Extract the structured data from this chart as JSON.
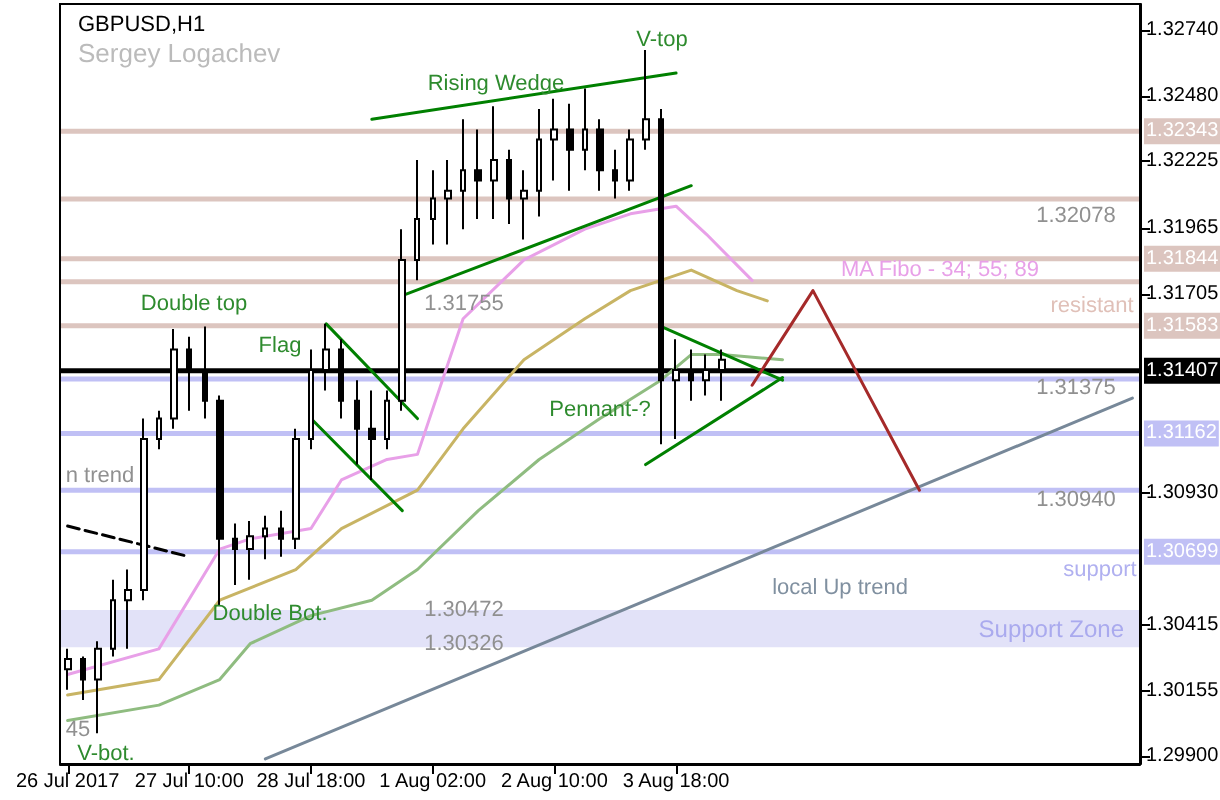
{
  "chart_data": {
    "type": "candlestick",
    "title": "GBPUSD,H1",
    "subtitle": "Sergey Logachev",
    "color": "#000000",
    "categories": [
      "26 Jul 2017",
      null,
      null,
      null,
      null,
      null,
      null,
      null,
      "27 Jul 10:00",
      null,
      null,
      null,
      null,
      null,
      null,
      null,
      "28 Jul 18:00",
      null,
      null,
      null,
      null,
      null,
      null,
      null,
      "1 Aug 02:00",
      null,
      null,
      null,
      null,
      null,
      null,
      null,
      "2 Aug 10:00",
      null,
      null,
      null,
      null,
      null,
      null,
      null,
      "3 Aug 18:00",
      null,
      null,
      null,
      null,
      null,
      null,
      null,
      null,
      null,
      null,
      null,
      null,
      null,
      null,
      null,
      null,
      null,
      null,
      null,
      null,
      null,
      null,
      null,
      null,
      null,
      null,
      null,
      null,
      null,
      null
    ],
    "ohlc": [
      [
        1.3024,
        1.3032,
        1.3016,
        1.3028
      ],
      [
        1.3028,
        1.3029,
        1.3012,
        1.302
      ],
      [
        1.302,
        1.3035,
        1.2999,
        1.3032
      ],
      [
        1.3032,
        1.3059,
        1.3029,
        1.3051
      ],
      [
        1.3051,
        1.3063,
        1.3032,
        1.3055
      ],
      [
        1.3055,
        1.3122,
        1.3051,
        1.3114
      ],
      [
        1.3114,
        1.3125,
        1.311,
        1.3122
      ],
      [
        1.3122,
        1.3157,
        1.3118,
        1.3149
      ],
      [
        1.3149,
        1.3154,
        1.3125,
        1.3141
      ],
      [
        1.3141,
        1.3158,
        1.3122,
        1.3129
      ],
      [
        1.3129,
        1.3131,
        1.3049,
        1.3075
      ],
      [
        1.3075,
        1.3081,
        1.3057,
        1.3071
      ],
      [
        1.3071,
        1.3082,
        1.3059,
        1.3076
      ],
      [
        1.3076,
        1.3084,
        1.3067,
        1.3079
      ],
      [
        1.3079,
        1.3086,
        1.3068,
        1.3075
      ],
      [
        1.3075,
        1.3118,
        1.3071,
        1.3114
      ],
      [
        1.3114,
        1.3149,
        1.311,
        1.3141
      ],
      [
        1.3141,
        1.3159,
        1.3133,
        1.3149
      ],
      [
        1.3149,
        1.3153,
        1.3122,
        1.3129
      ],
      [
        1.3129,
        1.3137,
        1.3104,
        1.3118
      ],
      [
        1.3118,
        1.3133,
        1.3098,
        1.3114
      ],
      [
        1.3114,
        1.3133,
        1.311,
        1.3129
      ],
      [
        1.3129,
        1.3196,
        1.3125,
        1.3184
      ],
      [
        1.3184,
        1.3223,
        1.3176,
        1.32
      ],
      [
        1.32,
        1.3219,
        1.319,
        1.3208
      ],
      [
        1.3208,
        1.3223,
        1.319,
        1.3211
      ],
      [
        1.3211,
        1.3239,
        1.3196,
        1.3219
      ],
      [
        1.3219,
        1.3235,
        1.32,
        1.3215
      ],
      [
        1.3215,
        1.3244,
        1.32,
        1.3223
      ],
      [
        1.3223,
        1.3227,
        1.3198,
        1.3208
      ],
      [
        1.3208,
        1.3219,
        1.3192,
        1.3211
      ],
      [
        1.3211,
        1.3243,
        1.3201,
        1.3231
      ],
      [
        1.3231,
        1.3247,
        1.3215,
        1.3235
      ],
      [
        1.3235,
        1.3245,
        1.3211,
        1.3227
      ],
      [
        1.3227,
        1.3251,
        1.3219,
        1.3235
      ],
      [
        1.3235,
        1.3239,
        1.3211,
        1.3219
      ],
      [
        1.3219,
        1.3227,
        1.3208,
        1.3215
      ],
      [
        1.3215,
        1.3235,
        1.3211,
        1.3231
      ],
      [
        1.3231,
        1.3266,
        1.3227,
        1.3239
      ],
      [
        1.3239,
        1.3243,
        1.3112,
        1.3137
      ],
      [
        1.3137,
        1.3153,
        1.3114,
        1.3141
      ],
      [
        1.3141,
        1.3149,
        1.3129,
        1.3137
      ],
      [
        1.3137,
        1.3147,
        1.3131,
        1.3141
      ],
      [
        1.3141,
        1.3149,
        1.3129,
        1.3145
      ],
      null,
      null,
      null,
      null,
      null,
      null,
      null,
      null,
      null,
      null,
      null,
      null,
      null,
      null,
      null,
      null,
      null,
      null,
      null,
      null,
      null,
      null,
      null,
      null,
      null,
      null,
      null
    ],
    "series": [
      {
        "type": "line",
        "color": "#e8a0e8",
        "values": [
          1.3022,
          null,
          null,
          null,
          null,
          null,
          1.3032,
          null,
          null,
          null,
          1.3071,
          null,
          1.3075,
          null,
          null,
          null,
          1.3079,
          null,
          1.3098,
          null,
          null,
          1.3106,
          null,
          1.3108,
          null,
          null,
          1.3161,
          null,
          null,
          null,
          1.3184,
          null,
          null,
          null,
          1.3196,
          null,
          null,
          1.3202,
          null,
          null,
          1.3205,
          null,
          1.3194,
          null,
          null,
          1.3176,
          null,
          null,
          null,
          null,
          null,
          null,
          null,
          null,
          null,
          null,
          null,
          null,
          null,
          null,
          null,
          null,
          null,
          null,
          null,
          null,
          null,
          null,
          null,
          null,
          null
        ]
      },
      {
        "type": "line",
        "color": "#c8b464",
        "values": [
          1.3014,
          null,
          null,
          null,
          null,
          null,
          1.302,
          null,
          null,
          null,
          1.3051,
          null,
          null,
          null,
          null,
          1.3063,
          null,
          null,
          1.3079,
          null,
          null,
          null,
          null,
          1.3094,
          null,
          null,
          1.3118,
          null,
          null,
          null,
          1.3145,
          null,
          null,
          null,
          1.3161,
          null,
          null,
          1.3172,
          null,
          null,
          null,
          1.318,
          null,
          null,
          1.3172,
          null,
          1.3168,
          null,
          null,
          null,
          null,
          null,
          null,
          null,
          null,
          null,
          null,
          null,
          null,
          null,
          null,
          null,
          null,
          null,
          null,
          null,
          null,
          null,
          null,
          null,
          null
        ]
      },
      {
        "type": "line",
        "color": "#8fbc80",
        "values": [
          1.3004,
          null,
          null,
          null,
          null,
          null,
          1.301,
          null,
          null,
          null,
          1.302,
          null,
          1.3034,
          null,
          null,
          null,
          1.3045,
          null,
          null,
          null,
          1.3051,
          null,
          null,
          1.3063,
          null,
          null,
          null,
          1.3086,
          null,
          null,
          null,
          1.3106,
          null,
          null,
          null,
          1.3122,
          null,
          null,
          null,
          1.3137,
          null,
          1.3147,
          null,
          1.3147,
          null,
          null,
          null,
          1.3145,
          null,
          null,
          null,
          null,
          null,
          null,
          null,
          null,
          null,
          null,
          null,
          null,
          null,
          null,
          null,
          null,
          null,
          null,
          null,
          null,
          null,
          null,
          null
        ]
      },
      {
        "type": "line",
        "color": "#008000",
        "values": [
          null,
          null,
          null,
          null,
          null,
          null,
          null,
          null,
          null,
          null,
          null,
          null,
          null,
          null,
          null,
          null,
          null,
          null,
          null,
          null,
          1.3239,
          null,
          null,
          null,
          null,
          null,
          null,
          null,
          null,
          null,
          null,
          null,
          null,
          null,
          null,
          null,
          null,
          null,
          null,
          null,
          1.3257,
          null,
          null,
          null,
          null,
          null,
          null,
          null,
          null,
          null,
          null,
          null,
          null,
          null,
          null,
          null,
          null,
          null,
          null,
          null,
          null,
          null,
          null,
          null,
          null,
          null,
          null,
          null,
          null,
          null,
          null
        ]
      },
      {
        "type": "line",
        "color": "#008000",
        "values": [
          null,
          null,
          null,
          null,
          null,
          null,
          null,
          null,
          null,
          null,
          null,
          null,
          null,
          null,
          null,
          null,
          null,
          null,
          null,
          null,
          null,
          null,
          1.317,
          null,
          null,
          null,
          null,
          null,
          null,
          null,
          null,
          null,
          null,
          null,
          null,
          null,
          null,
          null,
          null,
          null,
          null,
          1.3213,
          null,
          null,
          null,
          null,
          null,
          null,
          null,
          null,
          null,
          null,
          null,
          null,
          null,
          null,
          null,
          null,
          null,
          null,
          null,
          null,
          null,
          null,
          null,
          null,
          null,
          null,
          null,
          null,
          null
        ]
      },
      {
        "type": "line",
        "color": "#008000",
        "values": [
          null,
          null,
          null,
          null,
          null,
          null,
          null,
          null,
          null,
          null,
          null,
          null,
          null,
          null,
          null,
          null,
          null,
          1.3159,
          null,
          null,
          null,
          null,
          null,
          1.3122,
          null,
          null,
          null,
          null,
          null,
          null,
          null,
          null,
          null,
          null,
          null,
          null,
          null,
          null,
          null,
          null,
          null,
          null,
          null,
          null,
          null,
          null,
          null,
          null,
          null,
          null,
          null,
          null,
          null,
          null,
          null,
          null,
          null,
          null,
          null,
          null,
          null,
          null,
          null,
          null,
          null,
          null,
          null,
          null,
          null,
          null,
          null
        ]
      },
      {
        "type": "line",
        "color": "#008000",
        "values": [
          null,
          null,
          null,
          null,
          null,
          null,
          null,
          null,
          null,
          null,
          null,
          null,
          null,
          null,
          null,
          null,
          1.3122,
          null,
          null,
          null,
          null,
          null,
          1.3086,
          null,
          null,
          null,
          null,
          null,
          null,
          null,
          null,
          null,
          null,
          null,
          null,
          null,
          null,
          null,
          null,
          null,
          null,
          null,
          null,
          null,
          null,
          null,
          null,
          null,
          null,
          null,
          null,
          null,
          null,
          null,
          null,
          null,
          null,
          null,
          null,
          null,
          null,
          null,
          null,
          null,
          null,
          null,
          null,
          null,
          null,
          null,
          null
        ]
      },
      {
        "type": "line",
        "color": "#008000",
        "values": [
          null,
          null,
          null,
          null,
          null,
          null,
          null,
          null,
          null,
          null,
          null,
          null,
          null,
          null,
          null,
          null,
          null,
          null,
          null,
          null,
          null,
          null,
          null,
          null,
          null,
          null,
          null,
          null,
          null,
          null,
          null,
          null,
          null,
          null,
          null,
          null,
          null,
          null,
          1.3104,
          null,
          null,
          null,
          null,
          null,
          null,
          null,
          null,
          1.3138,
          null,
          null,
          null,
          null,
          null,
          null,
          null,
          null,
          null,
          null,
          null,
          null,
          null,
          null,
          null,
          null,
          null,
          null,
          null,
          null,
          null,
          null,
          null
        ]
      },
      {
        "type": "line",
        "color": "#008000",
        "values": [
          null,
          null,
          null,
          null,
          null,
          null,
          null,
          null,
          null,
          null,
          null,
          null,
          null,
          null,
          null,
          null,
          null,
          null,
          null,
          null,
          null,
          null,
          null,
          null,
          null,
          null,
          null,
          null,
          null,
          null,
          null,
          null,
          null,
          null,
          null,
          null,
          null,
          null,
          null,
          1.3158,
          null,
          null,
          null,
          null,
          null,
          null,
          null,
          1.3137,
          null,
          null,
          null,
          null,
          null,
          null,
          null,
          null,
          null,
          null,
          null,
          null,
          null,
          null,
          null,
          null,
          null,
          null,
          null,
          null,
          null,
          null,
          null
        ]
      },
      {
        "type": "line",
        "color": "#778899",
        "values": [
          null,
          null,
          null,
          null,
          null,
          null,
          null,
          null,
          null,
          null,
          null,
          null,
          null,
          1.2989,
          null,
          null,
          null,
          null,
          null,
          null,
          null,
          null,
          null,
          null,
          null,
          null,
          null,
          null,
          null,
          null,
          null,
          null,
          null,
          null,
          null,
          null,
          null,
          null,
          null,
          null,
          null,
          null,
          null,
          null,
          null,
          null,
          null,
          null,
          null,
          null,
          null,
          null,
          null,
          null,
          null,
          null,
          null,
          null,
          null,
          null,
          null,
          null,
          null,
          null,
          null,
          null,
          null,
          null,
          null,
          null,
          1.313
        ]
      },
      {
        "type": "line",
        "color": "#a52a2a",
        "values": [
          null,
          null,
          null,
          null,
          null,
          null,
          null,
          null,
          null,
          null,
          null,
          null,
          null,
          null,
          null,
          null,
          null,
          null,
          null,
          null,
          null,
          null,
          null,
          null,
          null,
          null,
          null,
          null,
          null,
          null,
          null,
          null,
          null,
          null,
          null,
          null,
          null,
          null,
          null,
          null,
          null,
          null,
          null,
          null,
          null,
          1.3135,
          null,
          null,
          null,
          1.3172,
          null,
          null,
          null,
          null,
          null,
          null,
          1.3094,
          null,
          null,
          null,
          null,
          null,
          null,
          null,
          null,
          null,
          null,
          null,
          null,
          null,
          null
        ]
      },
      {
        "type": "line",
        "color": "#000000",
        "line_style": "dashed",
        "values": [
          1.308,
          null,
          null,
          null,
          null,
          null,
          null,
          null,
          1.3068,
          null,
          null,
          null,
          null,
          null,
          null,
          null,
          null,
          null,
          null,
          null,
          null,
          null,
          null,
          null,
          null,
          null,
          null,
          null,
          null,
          null,
          null,
          null,
          null,
          null,
          null,
          null,
          null,
          null,
          null,
          null,
          null,
          null,
          null,
          null,
          null,
          null,
          null,
          null,
          null,
          null,
          null,
          null,
          null,
          null,
          null,
          null,
          null,
          null,
          null,
          null,
          null,
          null,
          null,
          null,
          null,
          null,
          null,
          null,
          null,
          null,
          null
        ]
      }
    ],
    "marker": "none",
    "ylim": [
      1.2987,
      1.3284
    ],
    "yticks": [
      {
        "value": 1.3274,
        "label": "1.32740"
      },
      {
        "value": 1.3248,
        "label": "1.32480"
      },
      {
        "value": 1.32225,
        "label": "1.32225"
      },
      {
        "value": 1.31965,
        "label": "1.31965"
      },
      {
        "value": 1.31705,
        "label": "1.31705"
      },
      {
        "value": 1.3093,
        "label": "1.30930"
      },
      {
        "value": 1.30415,
        "label": "1.30415"
      },
      {
        "value": 1.30155,
        "label": "1.30155"
      },
      {
        "value": 1.299,
        "label": "1.29900"
      }
    ],
    "ref_lines": [
      {
        "axis": "y",
        "value": 1.32343,
        "label": "1.32343",
        "color": "#dcc5bf"
      },
      {
        "axis": "y",
        "value": 1.32078,
        "color": "#dcc5bf"
      },
      {
        "axis": "y",
        "value": 1.31844,
        "label": "1.31844",
        "color": "#dcc5bf"
      },
      {
        "axis": "y",
        "value": 1.31755,
        "color": "#dcc5bf"
      },
      {
        "axis": "y",
        "value": 1.31583,
        "label": "1.31583",
        "color": "#dcc5bf"
      },
      {
        "axis": "y",
        "value": 1.31407,
        "label": "1.31407",
        "color": "#000000"
      },
      {
        "axis": "y",
        "value": 1.31375,
        "color": "#c0c0f5"
      },
      {
        "axis": "y",
        "value": 1.31162,
        "label": "1.31162",
        "color": "#c0c0f5"
      },
      {
        "axis": "y",
        "value": 1.3094,
        "color": "#c0c0f5"
      },
      {
        "axis": "y",
        "value": 1.30699,
        "label": "1.30699",
        "color": "#c0c0f5"
      }
    ],
    "bands": [
      {
        "axis": "y",
        "from": 1.30326,
        "to": 1.30472,
        "label": "Support Zone",
        "color": "#e2e2f8"
      }
    ],
    "annotations": [
      "V-top",
      "Rising Wedge",
      "Double top",
      "Flag",
      "1.31755",
      "Pennant-?",
      "MA Fibo - 34; 55; 89",
      "resistant",
      "1.32078",
      "1.31375",
      "1.30940",
      "support",
      "local Up trend",
      "1.30472",
      "1.30326",
      "Double Bot.",
      "V-bot.",
      "45",
      {
        "text": "n trend",
        "y": 1.3094
      }
    ]
  }
}
